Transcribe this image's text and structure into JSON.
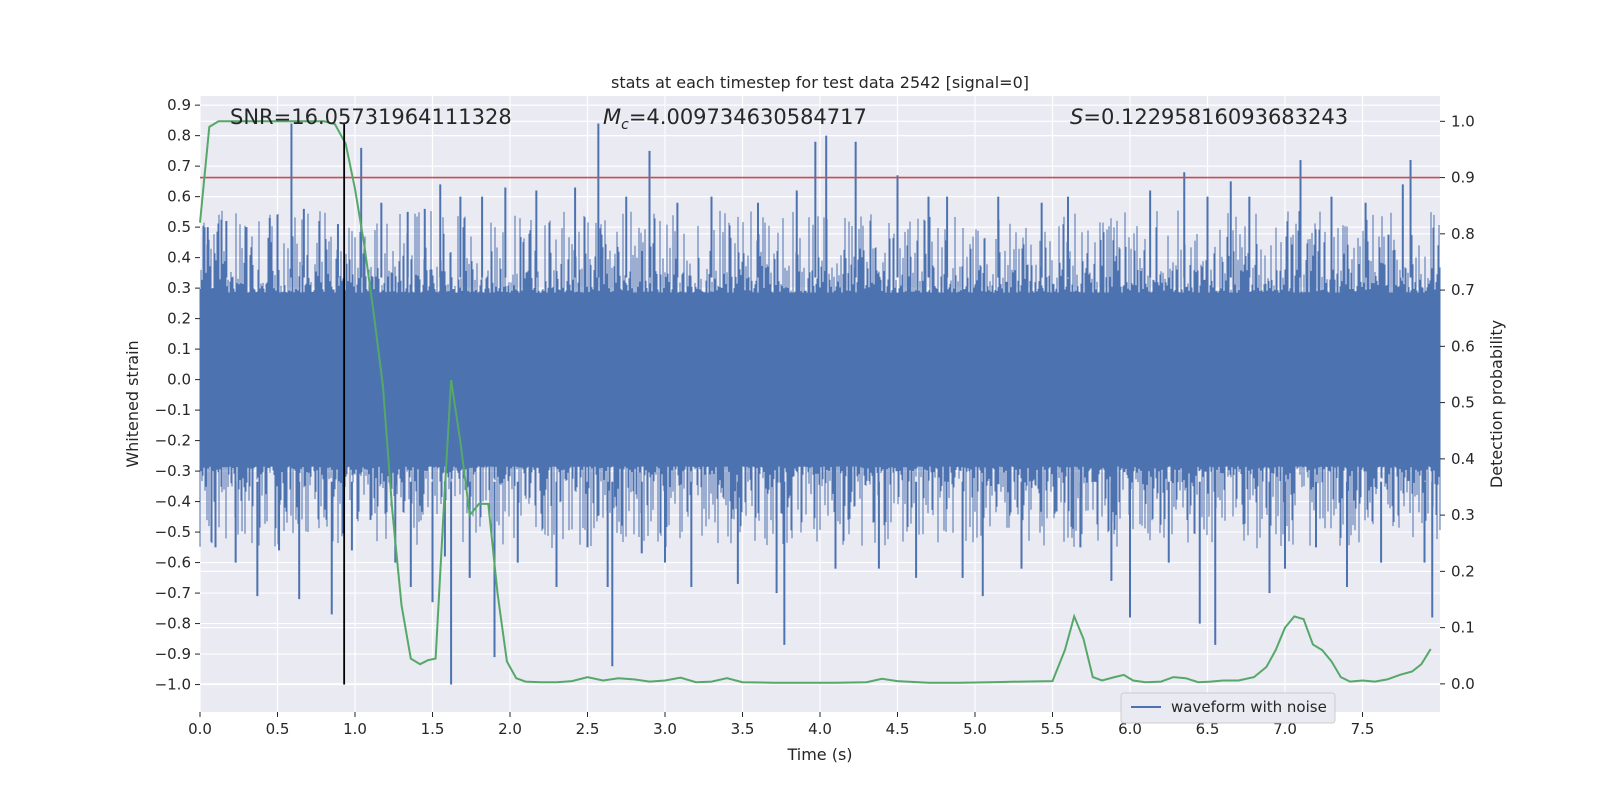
{
  "chart_data": {
    "type": "line",
    "title": "stats at each timestep for test data 2542 [signal=0]",
    "xlabel": "Time (s)",
    "ylabel_left": "Whitened strain",
    "ylabel_right": "Detection probability",
    "xlim": [
      0.0,
      8.0
    ],
    "ylim_left": [
      -1.09,
      0.93
    ],
    "ylim_right": [
      -0.05,
      1.045
    ],
    "x_ticks": [
      "0.0",
      "0.5",
      "1.0",
      "1.5",
      "2.0",
      "2.5",
      "3.0",
      "3.5",
      "4.0",
      "4.5",
      "5.0",
      "5.5",
      "6.0",
      "6.5",
      "7.0",
      "7.5"
    ],
    "y_ticks_left": [
      "0.9",
      "0.8",
      "0.7",
      "0.6",
      "0.5",
      "0.4",
      "0.3",
      "0.2",
      "0.1",
      "0.0",
      "-0.1",
      "-0.2",
      "-0.3",
      "-0.4",
      "-0.5",
      "-0.6",
      "-0.7",
      "-0.8",
      "-0.9",
      "-1.0"
    ],
    "y_ticks_right": [
      "1.0",
      "0.9",
      "0.8",
      "0.7",
      "0.6",
      "0.5",
      "0.4",
      "0.3",
      "0.2",
      "0.1",
      "0.0"
    ],
    "grid": true,
    "legend_placement": "lower-right",
    "annotations": {
      "snr": "SNR=16.05731964111328",
      "mc_symbol": "M",
      "mc_sub": "c",
      "mc_value": "=4.009734630584717",
      "s_symbol": "S",
      "s_value": "=0.12295816093683243"
    },
    "threshold_right": 0.9,
    "vertical_marker_x": 0.93,
    "vertical_marker_y_range": [
      -1.0,
      0.84
    ],
    "series": [
      {
        "name": "waveform with noise",
        "color": "#4c72b0",
        "axis": "left",
        "kind": "noise",
        "core_amplitude": 0.285,
        "spikes": [
          [
            0.05,
            0.5
          ],
          [
            0.1,
            -0.55
          ],
          [
            0.17,
            0.52
          ],
          [
            0.23,
            -0.6
          ],
          [
            0.3,
            0.5
          ],
          [
            0.37,
            -0.71
          ],
          [
            0.45,
            0.53
          ],
          [
            0.51,
            -0.56
          ],
          [
            0.59,
            0.84
          ],
          [
            0.64,
            -0.72
          ],
          [
            0.67,
            0.56
          ],
          [
            0.77,
            0.52
          ],
          [
            0.85,
            -0.77
          ],
          [
            0.89,
            0.51
          ],
          [
            0.98,
            -0.56
          ],
          [
            1.04,
            0.76
          ],
          [
            1.1,
            -0.46
          ],
          [
            1.17,
            0.58
          ],
          [
            1.26,
            -0.6
          ],
          [
            1.34,
            0.55
          ],
          [
            1.36,
            -0.68
          ],
          [
            1.45,
            0.56
          ],
          [
            1.5,
            -0.73
          ],
          [
            1.55,
            0.64
          ],
          [
            1.58,
            -0.58
          ],
          [
            1.62,
            -1.0
          ],
          [
            1.68,
            0.6
          ],
          [
            1.74,
            -0.65
          ],
          [
            1.82,
            0.6
          ],
          [
            1.9,
            -0.91
          ],
          [
            1.97,
            0.63
          ],
          [
            2.05,
            -0.6
          ],
          [
            2.17,
            0.62
          ],
          [
            2.3,
            -0.68
          ],
          [
            2.42,
            0.63
          ],
          [
            2.5,
            -0.55
          ],
          [
            2.57,
            0.84
          ],
          [
            2.63,
            -0.68
          ],
          [
            2.66,
            -0.94
          ],
          [
            2.75,
            0.6
          ],
          [
            2.85,
            -0.57
          ],
          [
            2.9,
            0.75
          ],
          [
            3.0,
            -0.6
          ],
          [
            3.08,
            0.58
          ],
          [
            3.17,
            -0.68
          ],
          [
            3.3,
            0.6
          ],
          [
            3.47,
            -0.67
          ],
          [
            3.6,
            0.58
          ],
          [
            3.72,
            -0.7
          ],
          [
            3.77,
            -0.87
          ],
          [
            3.85,
            0.62
          ],
          [
            3.97,
            0.78
          ],
          [
            4.04,
            0.8
          ],
          [
            4.1,
            -0.62
          ],
          [
            4.23,
            0.78
          ],
          [
            4.38,
            -0.62
          ],
          [
            4.5,
            0.67
          ],
          [
            4.62,
            -0.65
          ],
          [
            4.7,
            0.6
          ],
          [
            4.82,
            0.6
          ],
          [
            4.92,
            -0.65
          ],
          [
            5.05,
            -0.71
          ],
          [
            5.15,
            0.6
          ],
          [
            5.3,
            -0.62
          ],
          [
            5.43,
            0.58
          ],
          [
            5.6,
            0.6
          ],
          [
            5.68,
            -0.55
          ],
          [
            5.88,
            -0.66
          ],
          [
            6.0,
            -0.78
          ],
          [
            6.13,
            0.62
          ],
          [
            6.25,
            -0.6
          ],
          [
            6.35,
            0.68
          ],
          [
            6.45,
            -0.8
          ],
          [
            6.5,
            0.6
          ],
          [
            6.55,
            -0.87
          ],
          [
            6.65,
            0.65
          ],
          [
            6.77,
            0.6
          ],
          [
            6.9,
            -0.7
          ],
          [
            7.0,
            -0.62
          ],
          [
            7.1,
            0.72
          ],
          [
            7.2,
            -0.55
          ],
          [
            7.3,
            0.6
          ],
          [
            7.4,
            -0.68
          ],
          [
            7.52,
            0.58
          ],
          [
            7.62,
            -0.6
          ],
          [
            7.76,
            0.64
          ],
          [
            7.81,
            0.72
          ],
          [
            7.9,
            -0.6
          ],
          [
            7.95,
            -0.78
          ]
        ]
      },
      {
        "name": "",
        "color": "#55a868",
        "axis": "right",
        "kind": "line",
        "points": [
          [
            0.0,
            0.82
          ],
          [
            0.06,
            0.99
          ],
          [
            0.12,
            1.0
          ],
          [
            0.2,
            1.0
          ],
          [
            0.3,
            1.0
          ],
          [
            0.4,
            1.0
          ],
          [
            0.5,
            1.0
          ],
          [
            0.6,
            1.0
          ],
          [
            0.7,
            1.0
          ],
          [
            0.8,
            1.0
          ],
          [
            0.87,
            0.995
          ],
          [
            0.94,
            0.96
          ],
          [
            1.0,
            0.88
          ],
          [
            1.06,
            0.78
          ],
          [
            1.12,
            0.66
          ],
          [
            1.18,
            0.53
          ],
          [
            1.24,
            0.31
          ],
          [
            1.3,
            0.14
          ],
          [
            1.36,
            0.045
          ],
          [
            1.42,
            0.035
          ],
          [
            1.47,
            0.042
          ],
          [
            1.52,
            0.045
          ],
          [
            1.57,
            0.3
          ],
          [
            1.62,
            0.54
          ],
          [
            1.68,
            0.43
          ],
          [
            1.74,
            0.3
          ],
          [
            1.8,
            0.32
          ],
          [
            1.86,
            0.32
          ],
          [
            1.92,
            0.16
          ],
          [
            1.98,
            0.04
          ],
          [
            2.04,
            0.01
          ],
          [
            2.1,
            0.004
          ],
          [
            2.2,
            0.003
          ],
          [
            2.3,
            0.003
          ],
          [
            2.4,
            0.005
          ],
          [
            2.5,
            0.012
          ],
          [
            2.6,
            0.006
          ],
          [
            2.7,
            0.01
          ],
          [
            2.8,
            0.008
          ],
          [
            2.9,
            0.004
          ],
          [
            3.0,
            0.006
          ],
          [
            3.1,
            0.011
          ],
          [
            3.2,
            0.003
          ],
          [
            3.3,
            0.004
          ],
          [
            3.4,
            0.01
          ],
          [
            3.5,
            0.003
          ],
          [
            3.7,
            0.002
          ],
          [
            3.9,
            0.002
          ],
          [
            4.1,
            0.002
          ],
          [
            4.3,
            0.003
          ],
          [
            4.4,
            0.009
          ],
          [
            4.5,
            0.005
          ],
          [
            4.7,
            0.002
          ],
          [
            4.9,
            0.002
          ],
          [
            5.1,
            0.003
          ],
          [
            5.3,
            0.004
          ],
          [
            5.5,
            0.005
          ],
          [
            5.58,
            0.06
          ],
          [
            5.64,
            0.12
          ],
          [
            5.7,
            0.08
          ],
          [
            5.76,
            0.012
          ],
          [
            5.82,
            0.006
          ],
          [
            5.9,
            0.012
          ],
          [
            5.96,
            0.016
          ],
          [
            6.02,
            0.006
          ],
          [
            6.1,
            0.003
          ],
          [
            6.2,
            0.004
          ],
          [
            6.28,
            0.012
          ],
          [
            6.36,
            0.01
          ],
          [
            6.44,
            0.003
          ],
          [
            6.52,
            0.004
          ],
          [
            6.6,
            0.006
          ],
          [
            6.7,
            0.006
          ],
          [
            6.8,
            0.012
          ],
          [
            6.88,
            0.03
          ],
          [
            6.94,
            0.06
          ],
          [
            7.0,
            0.1
          ],
          [
            7.06,
            0.12
          ],
          [
            7.12,
            0.115
          ],
          [
            7.18,
            0.07
          ],
          [
            7.24,
            0.06
          ],
          [
            7.3,
            0.04
          ],
          [
            7.36,
            0.012
          ],
          [
            7.42,
            0.004
          ],
          [
            7.5,
            0.006
          ],
          [
            7.58,
            0.004
          ],
          [
            7.66,
            0.008
          ],
          [
            7.74,
            0.016
          ],
          [
            7.82,
            0.022
          ],
          [
            7.88,
            0.035
          ],
          [
            7.94,
            0.062
          ]
        ]
      }
    ]
  }
}
